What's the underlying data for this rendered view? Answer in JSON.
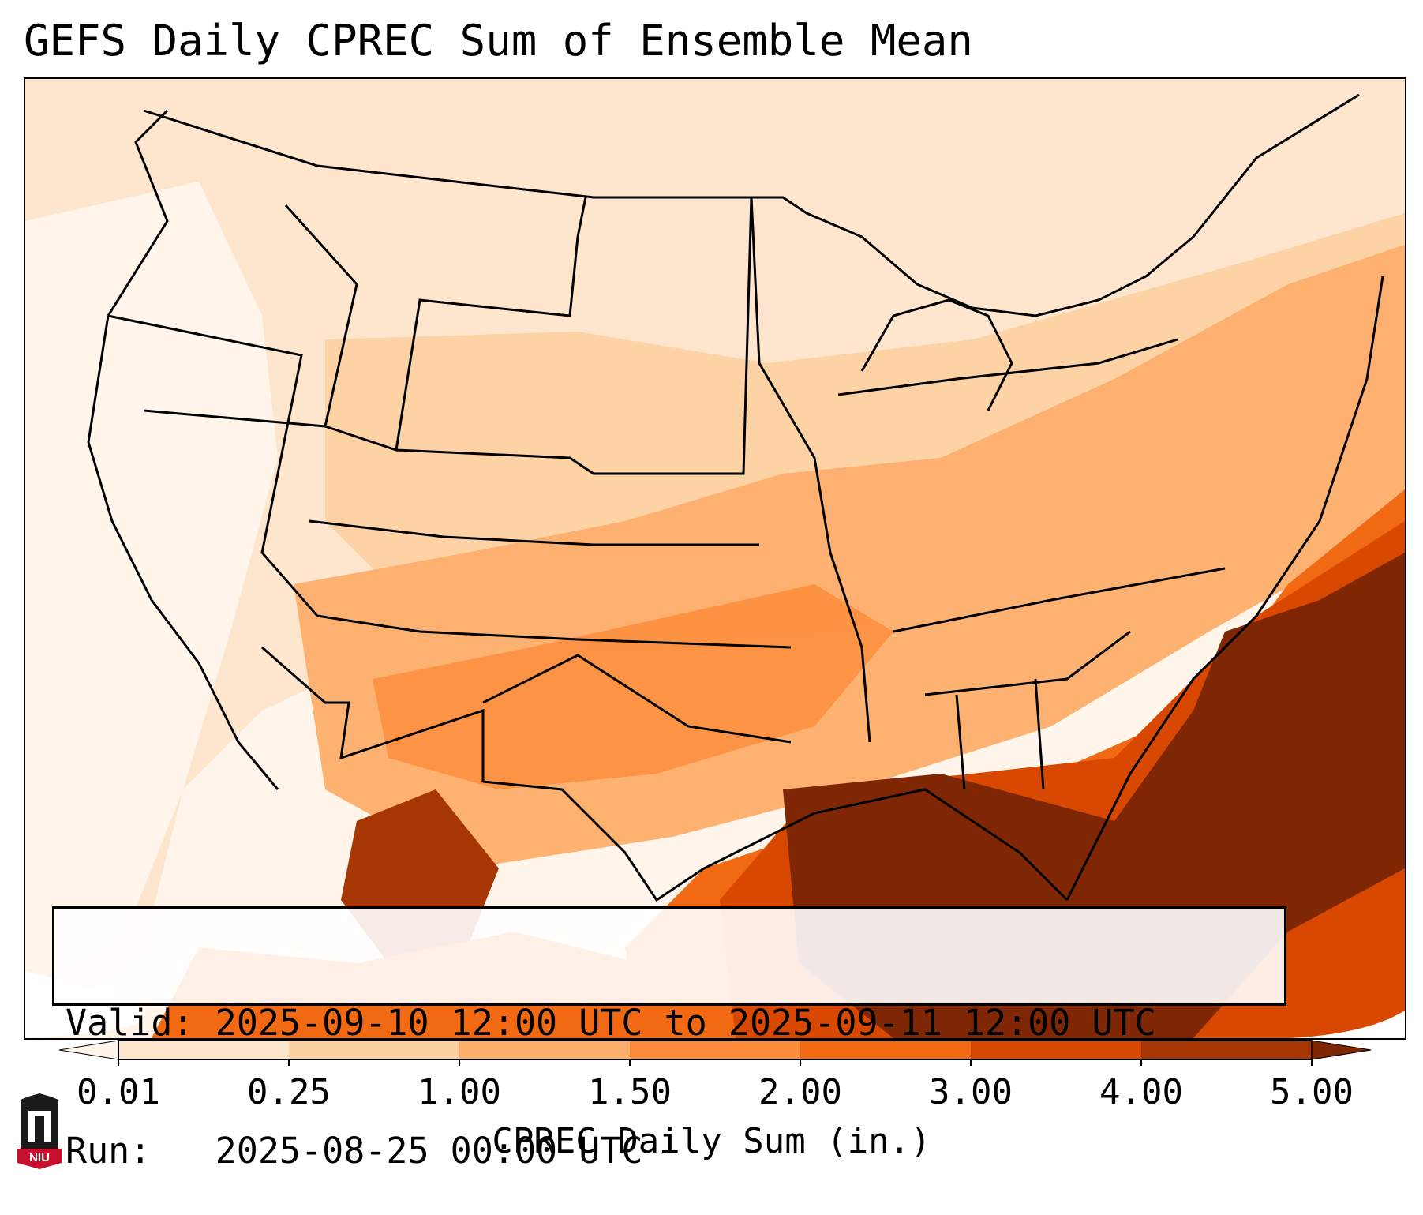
{
  "title": "GEFS Daily CPREC Sum of Ensemble Mean",
  "info": {
    "valid_line": "Valid: 2025-09-10 12:00 UTC to 2025-09-11 12:00 UTC",
    "run_line": "Run:   2025-08-25 00:00 UTC"
  },
  "colorbar": {
    "label": "CPREC Daily Sum (in.)",
    "ticks": [
      "0.01",
      "0.25",
      "1.00",
      "1.50",
      "2.00",
      "3.00",
      "4.00",
      "5.00"
    ],
    "colors": [
      "#fff5eb",
      "#fee6ce",
      "#fdd0a2",
      "#fdae6b",
      "#fd8d3c",
      "#f16913",
      "#d94801",
      "#a63603",
      "#7f2704"
    ]
  },
  "logo": {
    "text": "NIU"
  }
}
